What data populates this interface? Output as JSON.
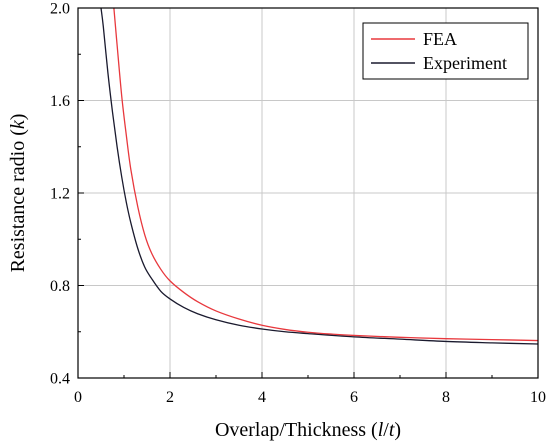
{
  "chart_data": {
    "type": "line",
    "xlabel": "Overlap/Thickness (l/t)",
    "ylabel": "Resistance radio (k)",
    "xlabel_parts": [
      {
        "text": "Overlap/Thickness (",
        "italic": false
      },
      {
        "text": "l",
        "italic": true
      },
      {
        "text": "/",
        "italic": false
      },
      {
        "text": "t",
        "italic": true
      },
      {
        "text": ")",
        "italic": false
      }
    ],
    "ylabel_parts": [
      {
        "text": "Resistance radio (",
        "italic": false
      },
      {
        "text": "k",
        "italic": true
      },
      {
        "text": ")",
        "italic": false
      }
    ],
    "xlim": [
      0,
      10
    ],
    "ylim": [
      0.4,
      2.0
    ],
    "xticks": [
      0,
      2,
      4,
      6,
      8,
      10
    ],
    "xtick_labels": [
      "0",
      "2",
      "4",
      "6",
      "8",
      "10"
    ],
    "yticks": [
      0.4,
      0.8,
      1.2,
      1.6,
      2.0
    ],
    "ytick_labels": [
      "0.4",
      "0.8",
      "1.2",
      "1.6",
      "2.0"
    ],
    "grid": true,
    "legend_position": "top-right",
    "series": [
      {
        "name": "FEA",
        "color": "#e8383d",
        "x": [
          0.78,
          0.85,
          0.95,
          1.05,
          1.15,
          1.3,
          1.45,
          1.6,
          1.8,
          2.0,
          2.3,
          2.6,
          3.0,
          3.5,
          4.0,
          4.5,
          5.0,
          5.5,
          6.0,
          7.0,
          8.0,
          9.0,
          10.0
        ],
        "y": [
          2.0,
          1.84,
          1.62,
          1.45,
          1.3,
          1.14,
          1.02,
          0.94,
          0.87,
          0.82,
          0.77,
          0.73,
          0.69,
          0.655,
          0.628,
          0.61,
          0.598,
          0.59,
          0.584,
          0.576,
          0.57,
          0.566,
          0.562
        ]
      },
      {
        "name": "Experiment",
        "color": "#1a1a2e",
        "x": [
          0.5,
          0.55,
          0.65,
          0.75,
          0.85,
          0.95,
          1.05,
          1.15,
          1.3,
          1.45,
          1.6,
          1.8,
          2.0,
          2.3,
          2.6,
          3.0,
          3.5,
          4.0,
          4.5,
          5.0,
          6.0,
          7.0,
          8.0,
          9.0,
          10.0
        ],
        "y": [
          2.0,
          1.92,
          1.72,
          1.55,
          1.4,
          1.27,
          1.16,
          1.07,
          0.96,
          0.88,
          0.83,
          0.775,
          0.742,
          0.705,
          0.678,
          0.652,
          0.628,
          0.612,
          0.6,
          0.592,
          0.578,
          0.568,
          0.558,
          0.552,
          0.547
        ]
      }
    ]
  }
}
